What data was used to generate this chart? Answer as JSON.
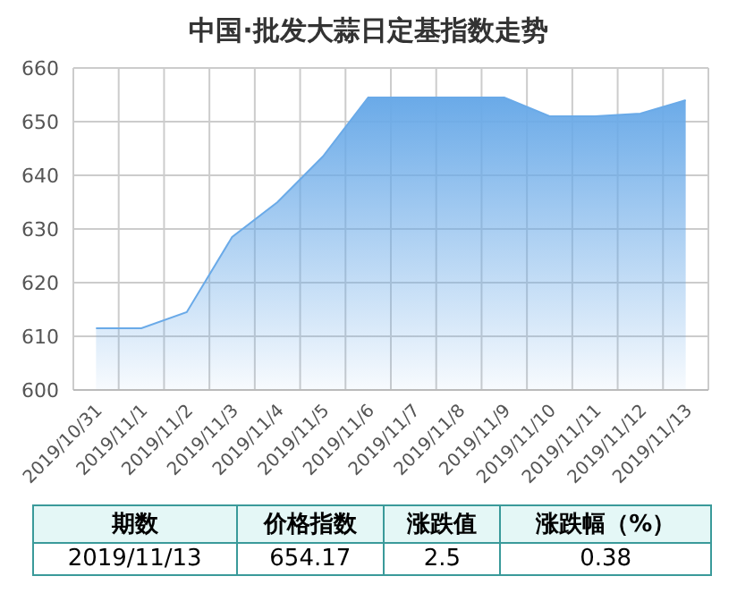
{
  "chart_data": {
    "type": "area",
    "title": "中国·批发大蒜日定基指数走势",
    "categories": [
      "2019/10/31",
      "2019/11/1",
      "2019/11/2",
      "2019/11/3",
      "2019/11/4",
      "2019/11/5",
      "2019/11/6",
      "2019/11/7",
      "2019/11/8",
      "2019/11/9",
      "2019/11/10",
      "2019/11/11",
      "2019/11/12",
      "2019/11/13"
    ],
    "values": [
      611.5,
      611.5,
      614.5,
      628.5,
      635,
      643.5,
      654.5,
      654.5,
      654.5,
      654.5,
      651,
      651,
      651.5,
      654
    ],
    "color": "#6aaae8",
    "ylim": [
      600,
      660
    ],
    "yticks": [
      600,
      610,
      620,
      630,
      640,
      650,
      660
    ],
    "grid": true,
    "annotations": [
      "期数",
      "价格指数",
      "涨跌值",
      "涨跌幅（%）",
      "2019/11/13",
      "654.17",
      "2.5",
      "0.38"
    ]
  }
}
